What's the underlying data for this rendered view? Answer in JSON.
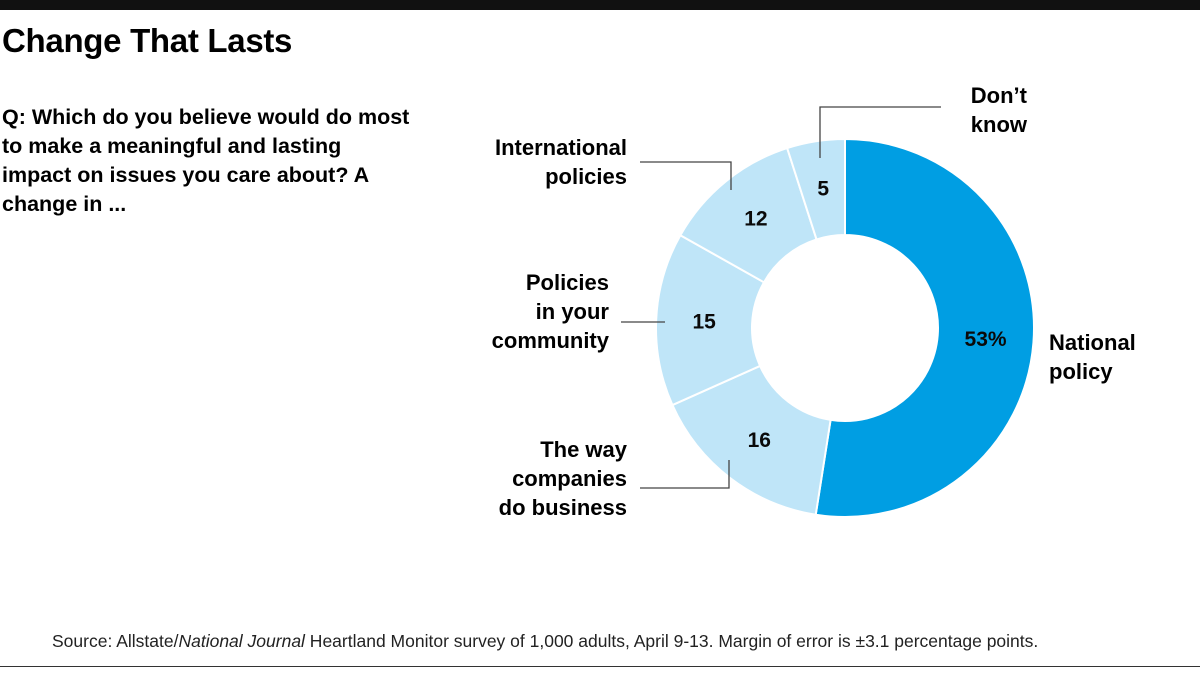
{
  "header": {
    "title": "Change That Lasts",
    "question": "Q: Which do you believe would do most to make a meaningful and lasting impact on issues you care about? A change in ..."
  },
  "chart_data": {
    "type": "pie",
    "variant": "donut",
    "start": "12 o'clock, clockwise",
    "categories": [
      "National policy",
      "The way companies do business",
      "Policies in your community",
      "International policies",
      "Don’t know"
    ],
    "values": [
      53,
      16,
      15,
      12,
      5
    ],
    "value_labels": [
      "53%",
      "16",
      "15",
      "12",
      "5"
    ],
    "category_lines": [
      [
        "National",
        "policy"
      ],
      [
        "The way",
        "companies",
        "do business"
      ],
      [
        "Policies",
        "in your",
        "community"
      ],
      [
        "International",
        "policies"
      ],
      [
        "Don’t",
        "know"
      ]
    ],
    "colors": [
      "#009ee3",
      "#bfe5f8",
      "#bfe5f8",
      "#bfe5f8",
      "#bfe5f8"
    ],
    "value_label_colors": [
      "#0a0a0a",
      "#0a0a0a",
      "#0a0a0a",
      "#0a0a0a",
      "#0a0a0a"
    ]
  },
  "footer": {
    "source_prefix": "Source: Allstate/",
    "source_publication": "National Journal",
    "source_suffix": " Heartland Monitor survey of 1,000 adults, April 9-13. Margin of error is ±3.1 percentage points."
  }
}
